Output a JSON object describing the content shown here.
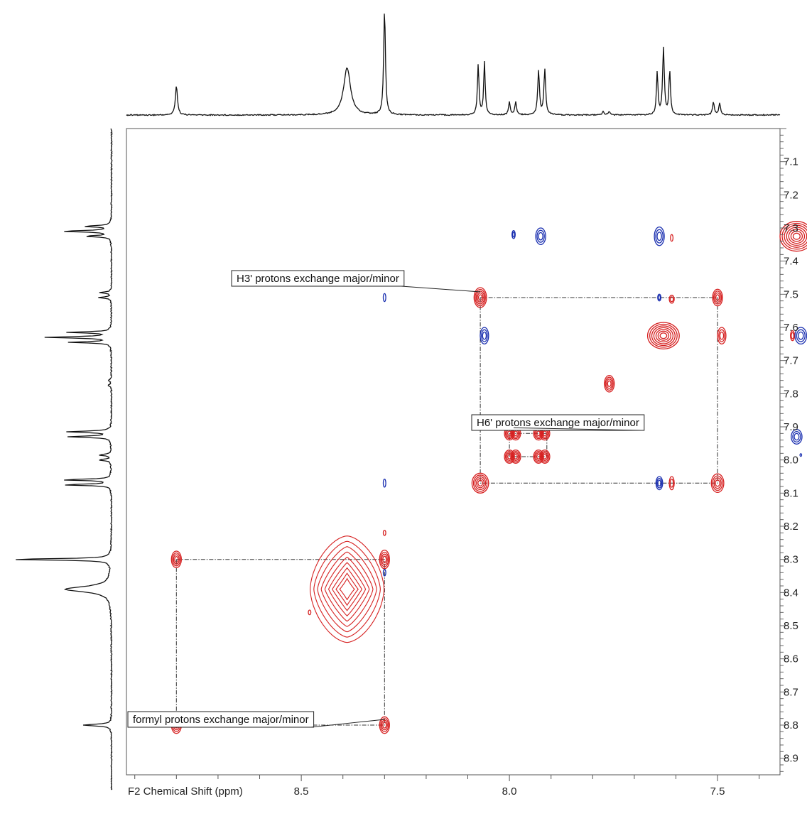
{
  "chart_data": {
    "type": "contour",
    "xlabel": "F2 Chemical Shift (ppm)",
    "x_axis": {
      "range": [
        8.92,
        7.35
      ],
      "reversed": true,
      "major_ticks": [
        8.5,
        8.0,
        7.5
      ],
      "major_tick_labels": [
        "8.5",
        "8.0",
        "7.5"
      ],
      "minor_step": 0.1
    },
    "y_axis": {
      "range": [
        7.0,
        8.95
      ],
      "reversed": true,
      "position": "right",
      "tick_labels": [
        "7.1",
        "7.2",
        "7.3",
        "7.4",
        "7.5",
        "7.6",
        "7.7",
        "7.8",
        "7.9",
        "8.0",
        "8.1",
        "8.2",
        "8.3",
        "8.4",
        "8.5",
        "8.6",
        "8.7",
        "8.8",
        "8.9"
      ],
      "tick_values": [
        7.1,
        7.2,
        7.3,
        7.4,
        7.5,
        7.6,
        7.7,
        7.8,
        7.9,
        8.0,
        8.1,
        8.2,
        8.3,
        8.4,
        8.5,
        8.6,
        8.7,
        8.8,
        8.9
      ],
      "minor_step": 0.02
    },
    "projection_peaks": [
      {
        "shift": 8.8,
        "height": 0.28,
        "width": 0.003
      },
      {
        "shift": 8.39,
        "height": 0.45,
        "width": 0.01
      },
      {
        "shift": 8.3,
        "height": 1.0,
        "width": 0.0025
      },
      {
        "shift": 8.075,
        "height": 0.48,
        "width": 0.0022
      },
      {
        "shift": 8.06,
        "height": 0.5,
        "width": 0.0022
      },
      {
        "shift": 8.0,
        "height": 0.12,
        "width": 0.0025
      },
      {
        "shift": 7.985,
        "height": 0.12,
        "width": 0.0025
      },
      {
        "shift": 7.93,
        "height": 0.42,
        "width": 0.0025
      },
      {
        "shift": 7.915,
        "height": 0.43,
        "width": 0.0025
      },
      {
        "shift": 7.775,
        "height": 0.03,
        "width": 0.003
      },
      {
        "shift": 7.76,
        "height": 0.03,
        "width": 0.003
      },
      {
        "shift": 7.645,
        "height": 0.4,
        "width": 0.0022
      },
      {
        "shift": 7.63,
        "height": 0.63,
        "width": 0.0025
      },
      {
        "shift": 7.615,
        "height": 0.42,
        "width": 0.0022
      },
      {
        "shift": 7.51,
        "height": 0.12,
        "width": 0.0025
      },
      {
        "shift": 7.495,
        "height": 0.11,
        "width": 0.0025
      },
      {
        "shift": 7.325,
        "height": 0.25,
        "width": 0.0025
      },
      {
        "shift": 7.31,
        "height": 0.48,
        "width": 0.0025
      },
      {
        "shift": 7.295,
        "height": 0.26,
        "width": 0.0025
      }
    ],
    "cross_peaks": [
      {
        "x": 8.8,
        "y": 8.3,
        "rx": 0.012,
        "ry": 0.025,
        "color": "red",
        "levels": 4
      },
      {
        "x": 8.8,
        "y": 8.8,
        "rx": 0.012,
        "ry": 0.025,
        "color": "red",
        "levels": 4
      },
      {
        "x": 8.3,
        "y": 8.3,
        "rx": 0.012,
        "ry": 0.028,
        "color": "red",
        "levels": 4
      },
      {
        "x": 8.3,
        "y": 8.8,
        "rx": 0.012,
        "ry": 0.025,
        "color": "red",
        "levels": 4
      },
      {
        "x": 8.07,
        "y": 7.51,
        "rx": 0.015,
        "ry": 0.03,
        "color": "red",
        "levels": 5
      },
      {
        "x": 7.5,
        "y": 7.51,
        "rx": 0.012,
        "ry": 0.025,
        "color": "red",
        "levels": 4
      },
      {
        "x": 8.07,
        "y": 8.07,
        "rx": 0.02,
        "ry": 0.03,
        "color": "red",
        "levels": 5
      },
      {
        "x": 7.5,
        "y": 8.07,
        "rx": 0.015,
        "ry": 0.028,
        "color": "red",
        "levels": 4
      },
      {
        "x": 7.76,
        "y": 7.77,
        "rx": 0.012,
        "ry": 0.025,
        "color": "red",
        "levels": 4
      },
      {
        "x": 7.63,
        "y": 7.625,
        "rx": 0.038,
        "ry": 0.04,
        "color": "red",
        "levels": 7
      },
      {
        "x": 7.31,
        "y": 7.325,
        "rx": 0.04,
        "ry": 0.045,
        "color": "red",
        "levels": 7
      },
      {
        "x": 7.49,
        "y": 7.625,
        "rx": 0.01,
        "ry": 0.025,
        "color": "red",
        "levels": 3
      },
      {
        "x": 7.61,
        "y": 7.515,
        "rx": 0.006,
        "ry": 0.012,
        "color": "red",
        "levels": 2
      },
      {
        "x": 7.61,
        "y": 8.07,
        "rx": 0.006,
        "ry": 0.02,
        "color": "red",
        "levels": 2
      },
      {
        "x": 7.61,
        "y": 7.33,
        "rx": 0.003,
        "ry": 0.01,
        "color": "red",
        "levels": 1
      },
      {
        "x": 8.0,
        "y": 7.92,
        "rx": 0.012,
        "ry": 0.02,
        "color": "red",
        "levels": 4
      },
      {
        "x": 7.985,
        "y": 7.92,
        "rx": 0.012,
        "ry": 0.02,
        "color": "red",
        "levels": 4
      },
      {
        "x": 7.93,
        "y": 7.92,
        "rx": 0.012,
        "ry": 0.02,
        "color": "red",
        "levels": 4
      },
      {
        "x": 7.915,
        "y": 7.92,
        "rx": 0.012,
        "ry": 0.02,
        "color": "red",
        "levels": 4
      },
      {
        "x": 8.0,
        "y": 7.99,
        "rx": 0.012,
        "ry": 0.02,
        "color": "red",
        "levels": 4
      },
      {
        "x": 7.985,
        "y": 7.99,
        "rx": 0.012,
        "ry": 0.02,
        "color": "red",
        "levels": 4
      },
      {
        "x": 7.93,
        "y": 7.99,
        "rx": 0.012,
        "ry": 0.02,
        "color": "red",
        "levels": 4
      },
      {
        "x": 7.915,
        "y": 7.99,
        "rx": 0.012,
        "ry": 0.02,
        "color": "red",
        "levels": 4
      },
      {
        "x": 7.32,
        "y": 7.625,
        "rx": 0.005,
        "ry": 0.015,
        "color": "red",
        "levels": 2
      },
      {
        "x": 8.3,
        "y": 8.22,
        "rx": 0.003,
        "ry": 0.008,
        "color": "red",
        "levels": 1
      },
      {
        "x": 8.48,
        "y": 8.46,
        "rx": 0.003,
        "ry": 0.007,
        "color": "red",
        "levels": 1
      },
      {
        "x": 8.06,
        "y": 7.625,
        "rx": 0.01,
        "ry": 0.025,
        "color": "blue",
        "levels": 3
      },
      {
        "x": 7.925,
        "y": 7.325,
        "rx": 0.012,
        "ry": 0.025,
        "color": "blue",
        "levels": 3
      },
      {
        "x": 7.99,
        "y": 7.32,
        "rx": 0.004,
        "ry": 0.012,
        "color": "blue",
        "levels": 2
      },
      {
        "x": 7.64,
        "y": 7.325,
        "rx": 0.012,
        "ry": 0.028,
        "color": "blue",
        "levels": 3
      },
      {
        "x": 7.64,
        "y": 8.07,
        "rx": 0.008,
        "ry": 0.02,
        "color": "blue",
        "levels": 3
      },
      {
        "x": 7.64,
        "y": 7.51,
        "rx": 0.004,
        "ry": 0.01,
        "color": "blue",
        "levels": 2
      },
      {
        "x": 7.3,
        "y": 7.625,
        "rx": 0.014,
        "ry": 0.025,
        "color": "blue",
        "levels": 3
      },
      {
        "x": 7.31,
        "y": 7.93,
        "rx": 0.013,
        "ry": 0.022,
        "color": "blue",
        "levels": 3
      },
      {
        "x": 7.3,
        "y": 7.985,
        "rx": 0.002,
        "ry": 0.004,
        "color": "blue",
        "levels": 1
      },
      {
        "x": 8.3,
        "y": 7.51,
        "rx": 0.003,
        "ry": 0.012,
        "color": "blue",
        "levels": 1
      },
      {
        "x": 8.3,
        "y": 8.07,
        "rx": 0.003,
        "ry": 0.012,
        "color": "blue",
        "levels": 1
      },
      {
        "x": 8.3,
        "y": 8.34,
        "rx": 0.003,
        "ry": 0.01,
        "color": "blue",
        "levels": 1
      }
    ],
    "diamond_peak": {
      "x": 8.39,
      "y": 8.39,
      "color": "red"
    },
    "connectors": [
      {
        "points": [
          [
            8.8,
            8.3
          ],
          [
            8.3,
            8.3
          ],
          [
            8.3,
            8.8
          ],
          [
            8.8,
            8.8
          ],
          [
            8.8,
            8.3
          ]
        ]
      },
      {
        "points": [
          [
            8.07,
            7.51
          ],
          [
            7.5,
            7.51
          ],
          [
            7.5,
            8.07
          ],
          [
            8.07,
            8.07
          ],
          [
            8.07,
            7.51
          ]
        ]
      },
      {
        "points": [
          [
            8.0,
            7.92
          ],
          [
            7.91,
            7.92
          ],
          [
            7.91,
            7.99
          ],
          [
            8.0,
            7.99
          ],
          [
            8.0,
            7.92
          ]
        ]
      }
    ],
    "annotations": [
      {
        "id": "h3",
        "text": "H3' protons exchange major/minor",
        "x": 8.07,
        "y": 7.51
      },
      {
        "id": "h6",
        "text": "H6' protons exchange major/minor",
        "x": 7.99,
        "y": 7.92
      },
      {
        "id": "formyl",
        "text": "formyl protons exchange major/minor",
        "x": 8.3,
        "y": 8.8
      }
    ],
    "colors": {
      "positive": "#d62020",
      "negative": "#1a2fb0",
      "trace": "#111111",
      "frame": "#555555"
    }
  }
}
